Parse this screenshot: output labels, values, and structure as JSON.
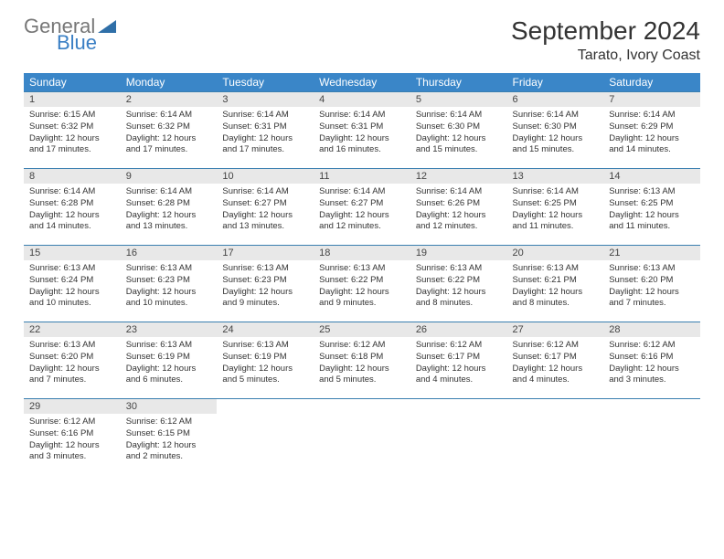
{
  "brand": {
    "general": "General",
    "blue": "Blue"
  },
  "title": "September 2024",
  "location": "Tarato, Ivory Coast",
  "colors": {
    "header_bg": "#3a86c8",
    "header_text": "#ffffff",
    "daynum_bg": "#e8e8e8",
    "border": "#3a7fb0",
    "logo_general": "#777777",
    "logo_blue": "#3a7fc4",
    "text": "#333333",
    "triangle": "#2f6fa8"
  },
  "weekdays": [
    "Sunday",
    "Monday",
    "Tuesday",
    "Wednesday",
    "Thursday",
    "Friday",
    "Saturday"
  ],
  "days": [
    {
      "n": "1",
      "sunrise": "6:15 AM",
      "sunset": "6:32 PM",
      "daylight": "12 hours and 17 minutes."
    },
    {
      "n": "2",
      "sunrise": "6:14 AM",
      "sunset": "6:32 PM",
      "daylight": "12 hours and 17 minutes."
    },
    {
      "n": "3",
      "sunrise": "6:14 AM",
      "sunset": "6:31 PM",
      "daylight": "12 hours and 17 minutes."
    },
    {
      "n": "4",
      "sunrise": "6:14 AM",
      "sunset": "6:31 PM",
      "daylight": "12 hours and 16 minutes."
    },
    {
      "n": "5",
      "sunrise": "6:14 AM",
      "sunset": "6:30 PM",
      "daylight": "12 hours and 15 minutes."
    },
    {
      "n": "6",
      "sunrise": "6:14 AM",
      "sunset": "6:30 PM",
      "daylight": "12 hours and 15 minutes."
    },
    {
      "n": "7",
      "sunrise": "6:14 AM",
      "sunset": "6:29 PM",
      "daylight": "12 hours and 14 minutes."
    },
    {
      "n": "8",
      "sunrise": "6:14 AM",
      "sunset": "6:28 PM",
      "daylight": "12 hours and 14 minutes."
    },
    {
      "n": "9",
      "sunrise": "6:14 AM",
      "sunset": "6:28 PM",
      "daylight": "12 hours and 13 minutes."
    },
    {
      "n": "10",
      "sunrise": "6:14 AM",
      "sunset": "6:27 PM",
      "daylight": "12 hours and 13 minutes."
    },
    {
      "n": "11",
      "sunrise": "6:14 AM",
      "sunset": "6:27 PM",
      "daylight": "12 hours and 12 minutes."
    },
    {
      "n": "12",
      "sunrise": "6:14 AM",
      "sunset": "6:26 PM",
      "daylight": "12 hours and 12 minutes."
    },
    {
      "n": "13",
      "sunrise": "6:14 AM",
      "sunset": "6:25 PM",
      "daylight": "12 hours and 11 minutes."
    },
    {
      "n": "14",
      "sunrise": "6:13 AM",
      "sunset": "6:25 PM",
      "daylight": "12 hours and 11 minutes."
    },
    {
      "n": "15",
      "sunrise": "6:13 AM",
      "sunset": "6:24 PM",
      "daylight": "12 hours and 10 minutes."
    },
    {
      "n": "16",
      "sunrise": "6:13 AM",
      "sunset": "6:23 PM",
      "daylight": "12 hours and 10 minutes."
    },
    {
      "n": "17",
      "sunrise": "6:13 AM",
      "sunset": "6:23 PM",
      "daylight": "12 hours and 9 minutes."
    },
    {
      "n": "18",
      "sunrise": "6:13 AM",
      "sunset": "6:22 PM",
      "daylight": "12 hours and 9 minutes."
    },
    {
      "n": "19",
      "sunrise": "6:13 AM",
      "sunset": "6:22 PM",
      "daylight": "12 hours and 8 minutes."
    },
    {
      "n": "20",
      "sunrise": "6:13 AM",
      "sunset": "6:21 PM",
      "daylight": "12 hours and 8 minutes."
    },
    {
      "n": "21",
      "sunrise": "6:13 AM",
      "sunset": "6:20 PM",
      "daylight": "12 hours and 7 minutes."
    },
    {
      "n": "22",
      "sunrise": "6:13 AM",
      "sunset": "6:20 PM",
      "daylight": "12 hours and 7 minutes."
    },
    {
      "n": "23",
      "sunrise": "6:13 AM",
      "sunset": "6:19 PM",
      "daylight": "12 hours and 6 minutes."
    },
    {
      "n": "24",
      "sunrise": "6:13 AM",
      "sunset": "6:19 PM",
      "daylight": "12 hours and 5 minutes."
    },
    {
      "n": "25",
      "sunrise": "6:12 AM",
      "sunset": "6:18 PM",
      "daylight": "12 hours and 5 minutes."
    },
    {
      "n": "26",
      "sunrise": "6:12 AM",
      "sunset": "6:17 PM",
      "daylight": "12 hours and 4 minutes."
    },
    {
      "n": "27",
      "sunrise": "6:12 AM",
      "sunset": "6:17 PM",
      "daylight": "12 hours and 4 minutes."
    },
    {
      "n": "28",
      "sunrise": "6:12 AM",
      "sunset": "6:16 PM",
      "daylight": "12 hours and 3 minutes."
    },
    {
      "n": "29",
      "sunrise": "6:12 AM",
      "sunset": "6:16 PM",
      "daylight": "12 hours and 3 minutes."
    },
    {
      "n": "30",
      "sunrise": "6:12 AM",
      "sunset": "6:15 PM",
      "daylight": "12 hours and 2 minutes."
    }
  ],
  "labels": {
    "sunrise": "Sunrise:",
    "sunset": "Sunset:",
    "daylight": "Daylight:"
  }
}
